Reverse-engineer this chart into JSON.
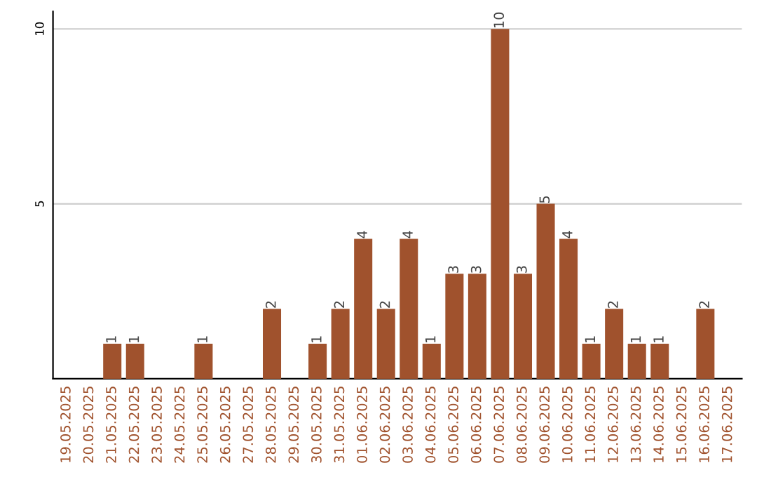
{
  "chart_data": {
    "type": "bar",
    "categories": [
      "19.05.2025",
      "20.05.2025",
      "21.05.2025",
      "22.05.2025",
      "23.05.2025",
      "24.05.2025",
      "25.05.2025",
      "26.05.2025",
      "27.05.2025",
      "28.05.2025",
      "29.05.2025",
      "30.05.2025",
      "31.05.2025",
      "01.06.2025",
      "02.06.2025",
      "03.06.2025",
      "04.06.2025",
      "05.06.2025",
      "06.06.2025",
      "07.06.2025",
      "08.06.2025",
      "09.06.2025",
      "10.06.2025",
      "11.06.2025",
      "12.06.2025",
      "13.06.2025",
      "14.06.2025",
      "15.06.2025",
      "16.06.2025",
      "17.06.2025"
    ],
    "values": [
      0,
      0,
      1,
      1,
      0,
      0,
      1,
      0,
      0,
      2,
      0,
      1,
      2,
      4,
      2,
      4,
      1,
      3,
      3,
      10,
      3,
      5,
      4,
      1,
      2,
      1,
      1,
      0,
      2,
      0
    ],
    "value_labels": [
      null,
      null,
      "1",
      "1",
      null,
      null,
      "1",
      null,
      null,
      "2",
      null,
      "1",
      "2",
      "4",
      "2",
      "4",
      "1",
      "3",
      "3",
      "10",
      "3",
      "5",
      "4",
      "1",
      "2",
      "1",
      "1",
      null,
      "2",
      null
    ],
    "color": "#a0522d",
    "ylim": [
      0,
      10.5
    ],
    "yticks": [
      5,
      10
    ],
    "grid": "y"
  }
}
